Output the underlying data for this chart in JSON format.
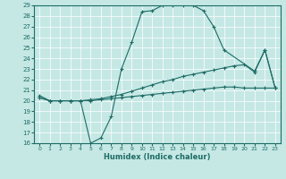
{
  "xlabel": "Humidex (Indice chaleur)",
  "xlim": [
    -0.5,
    23.5
  ],
  "ylim": [
    16,
    29
  ],
  "yticks": [
    16,
    17,
    18,
    19,
    20,
    21,
    22,
    23,
    24,
    25,
    26,
    27,
    28,
    29
  ],
  "xticks": [
    0,
    1,
    2,
    3,
    4,
    5,
    6,
    7,
    8,
    9,
    10,
    11,
    12,
    13,
    14,
    15,
    16,
    17,
    18,
    19,
    20,
    21,
    22,
    23
  ],
  "bg_color": "#c5e8e5",
  "line_color": "#1e6b65",
  "line1_x": [
    0,
    1,
    2,
    3,
    4,
    5,
    6,
    7,
    8,
    9,
    10,
    11,
    12,
    13,
    14,
    15,
    16,
    17,
    18,
    21,
    22,
    23
  ],
  "line1_y": [
    20.5,
    20.0,
    20.0,
    20.0,
    20.0,
    16.0,
    16.5,
    18.5,
    23.0,
    25.5,
    28.4,
    28.5,
    29.0,
    29.0,
    29.0,
    29.0,
    28.5,
    27.0,
    24.8,
    22.8,
    24.8,
    21.2
  ],
  "line2_x": [
    0,
    1,
    2,
    3,
    4,
    5,
    6,
    7,
    8,
    9,
    10,
    11,
    12,
    13,
    14,
    15,
    16,
    17,
    18,
    19,
    20,
    21,
    22,
    23
  ],
  "line2_y": [
    20.3,
    20.0,
    20.0,
    20.0,
    20.0,
    20.1,
    20.2,
    20.4,
    20.6,
    20.9,
    21.2,
    21.5,
    21.8,
    22.0,
    22.3,
    22.5,
    22.7,
    22.9,
    23.1,
    23.3,
    23.4,
    22.7,
    24.8,
    21.2
  ],
  "line3_x": [
    0,
    1,
    2,
    3,
    4,
    5,
    6,
    7,
    8,
    9,
    10,
    11,
    12,
    13,
    14,
    15,
    16,
    17,
    18,
    19,
    20,
    21,
    22,
    23
  ],
  "line3_y": [
    20.3,
    20.0,
    20.0,
    20.0,
    20.0,
    20.0,
    20.1,
    20.2,
    20.3,
    20.4,
    20.5,
    20.6,
    20.7,
    20.8,
    20.9,
    21.0,
    21.1,
    21.2,
    21.3,
    21.3,
    21.2,
    21.2,
    21.2,
    21.2
  ]
}
